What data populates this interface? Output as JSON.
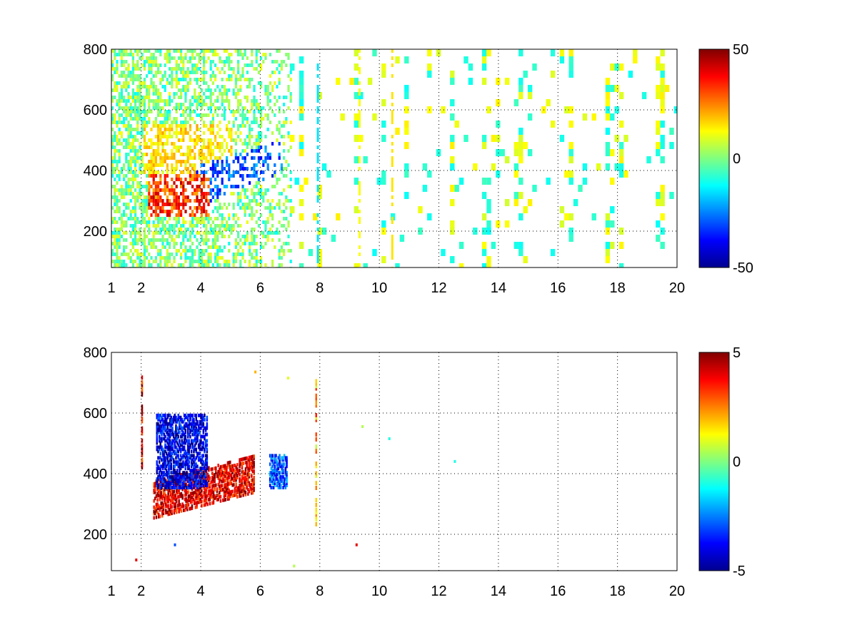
{
  "chart_data": [
    {
      "type": "heatmap",
      "title": "",
      "xlabel": "",
      "ylabel": "",
      "xlim": [
        1,
        20
      ],
      "ylim": [
        80,
        800
      ],
      "x_ticks": [
        1,
        2,
        4,
        6,
        8,
        10,
        12,
        14,
        16,
        18,
        20
      ],
      "y_ticks": [
        200,
        400,
        600,
        800
      ],
      "grid": true,
      "colormap": "jet",
      "colorbar": {
        "min": -50,
        "max": 50,
        "ticks": [
          50,
          0,
          -50
        ]
      },
      "description_of_data": "dense mixed values 2-6 on x; warm band (+20..+40) near y 260-380 at x 2-4; cool band (-20..-35) near y 300-450 at x 4-6.5; sparse near-zero vertical stripes for x>7",
      "features": [
        {
          "kind": "warm-band",
          "x": [
            2.2,
            4.2
          ],
          "y": [
            260,
            380
          ],
          "value": 35
        },
        {
          "kind": "cool-band",
          "x": [
            3.8,
            6.6
          ],
          "y": [
            290,
            460
          ],
          "value": -28
        },
        {
          "kind": "column",
          "x": 7.9,
          "y": [
            80,
            800
          ],
          "value": -15
        },
        {
          "kind": "column",
          "x": 9.3,
          "y": [
            80,
            800
          ],
          "value": 12
        },
        {
          "kind": "column",
          "x": 10.4,
          "y": [
            80,
            800
          ],
          "value": 15
        }
      ]
    },
    {
      "type": "heatmap",
      "title": "",
      "xlabel": "",
      "ylabel": "",
      "xlim": [
        1,
        20
      ],
      "ylim": [
        80,
        800
      ],
      "x_ticks": [
        1,
        2,
        4,
        6,
        8,
        10,
        12,
        14,
        16,
        18,
        20
      ],
      "y_ticks": [
        200,
        400,
        600,
        800
      ],
      "grid": true,
      "colormap": "jet",
      "colorbar": {
        "min": -5,
        "max": 5,
        "ticks": [
          5,
          0,
          -5
        ]
      },
      "features": [
        {
          "kind": "warm-band",
          "x": [
            2.4,
            5.8
          ],
          "y": [
            260,
            380
          ],
          "value": 4
        },
        {
          "kind": "cool-cluster",
          "x": [
            2.5,
            4.2
          ],
          "y": [
            360,
            600
          ],
          "value": -4
        },
        {
          "kind": "column",
          "x": 2.0,
          "y": [
            420,
            730
          ],
          "value": 4
        },
        {
          "kind": "cluster",
          "x": [
            6.3,
            6.9
          ],
          "y": [
            360,
            470
          ],
          "value": -3
        },
        {
          "kind": "column",
          "x": 7.85,
          "y": [
            240,
            720
          ],
          "value": 2
        }
      ]
    }
  ]
}
